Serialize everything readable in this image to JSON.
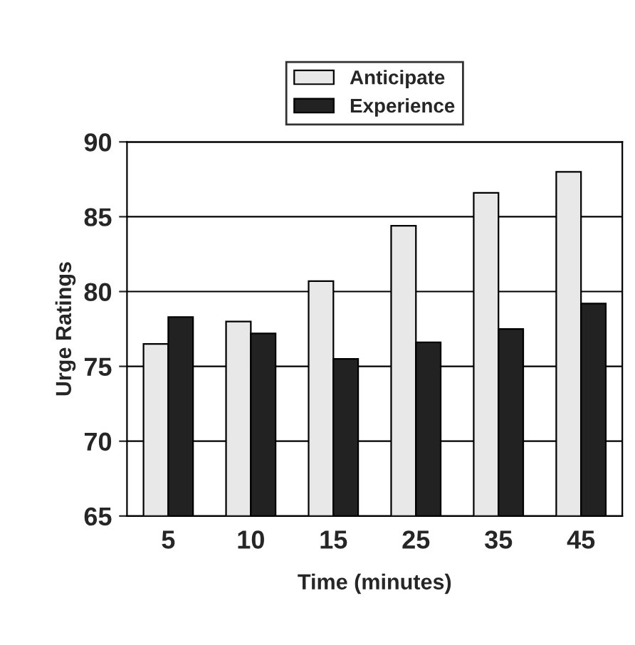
{
  "chart_data": {
    "type": "bar",
    "xlabel": "Time (minutes)",
    "ylabel": "Urge Ratings",
    "categories": [
      "5",
      "10",
      "15",
      "25",
      "35",
      "45"
    ],
    "series": [
      {
        "name": "Anticipate",
        "color": "#e8e8e8",
        "values": [
          76.5,
          78,
          80.7,
          84.4,
          86.6,
          88
        ]
      },
      {
        "name": "Experience",
        "color": "#222222",
        "values": [
          78.3,
          77.2,
          75.5,
          76.6,
          77.5,
          79.2
        ]
      }
    ],
    "ylim": [
      65,
      90
    ],
    "yticks": [
      65,
      70,
      75,
      80,
      85,
      90
    ],
    "grid": "y",
    "legend": "top"
  }
}
